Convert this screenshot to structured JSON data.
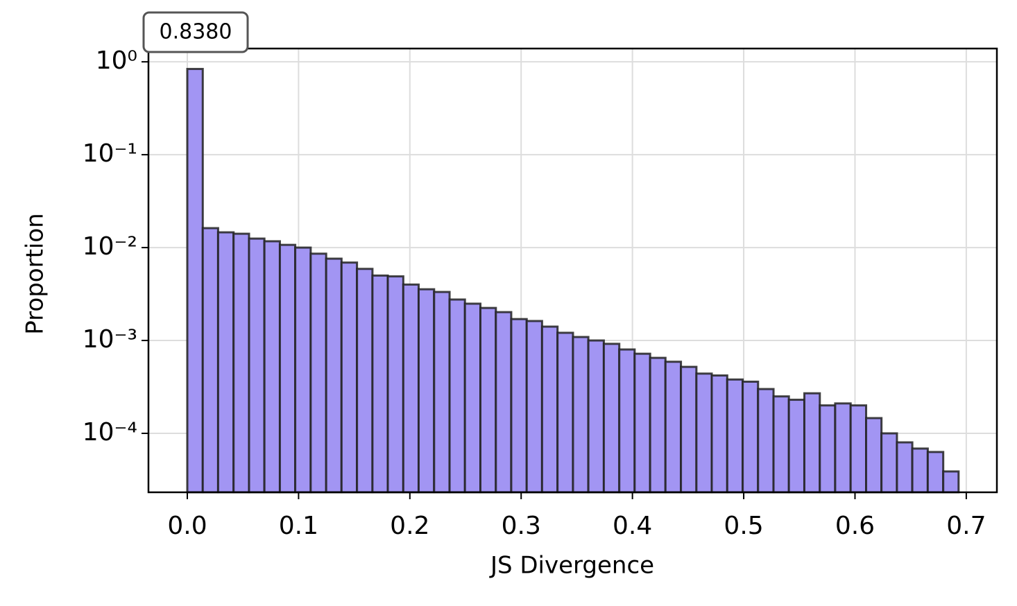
{
  "chart_data": {
    "type": "histogram",
    "annotation": "0.8380",
    "xlabel": "JS Divergence",
    "ylabel": "Proportion",
    "bins": [
      0,
      0.0139,
      0.0277,
      0.0416,
      0.0555,
      0.0693,
      0.0832,
      0.097,
      0.1109,
      0.1248,
      0.1386,
      0.1525,
      0.1664,
      0.1802,
      0.1941,
      0.2079,
      0.2218,
      0.2357,
      0.2495,
      0.2634,
      0.2773,
      0.2911,
      0.305,
      0.3188,
      0.3327,
      0.3466,
      0.3604,
      0.3743,
      0.3882,
      0.402,
      0.4159,
      0.4297,
      0.4436,
      0.4575,
      0.4713,
      0.4852,
      0.4991,
      0.5129,
      0.5268,
      0.5406,
      0.5545,
      0.5684,
      0.5822,
      0.5961,
      0.61,
      0.6238,
      0.6377,
      0.6515,
      0.6654,
      0.6793,
      0.6931
    ],
    "values": [
      0.838,
      0.0162,
      0.0146,
      0.0141,
      0.0125,
      0.0117,
      0.0107,
      0.01,
      0.0086,
      0.0076,
      0.0069,
      0.0059,
      0.005,
      0.0049,
      0.004,
      0.00356,
      0.00333,
      0.00276,
      0.00249,
      0.00224,
      0.00202,
      0.0017,
      0.00162,
      0.00141,
      0.00121,
      0.00109,
      0.001,
      0.00092,
      0.0008,
      0.00072,
      0.00065,
      0.00059,
      0.00052,
      0.00044,
      0.00042,
      0.00038,
      0.00036,
      0.0003,
      0.00025,
      0.00023,
      0.00027,
      0.0002,
      0.00021,
      0.0002,
      0.000146,
      0.0001,
      8e-05,
      6.86e-05,
      6.3e-05,
      3.89e-05
    ],
    "color": "#a295f3",
    "edgecolor": "#222222",
    "xlim": [
      -0.0349,
      0.7275
    ],
    "xticks": [
      {
        "value": 0,
        "label": "0.0"
      },
      0.1,
      0.2,
      0.3,
      0.4,
      0.5,
      0.6,
      0.7
    ],
    "ylim": [
      2.32e-05,
      1.39
    ],
    "yscale": "log",
    "yticks": [
      {
        "value": 1,
        "label": "10⁰"
      },
      {
        "value": 0.1,
        "label": "10⁻¹"
      },
      {
        "value": 0.01,
        "label": "10⁻²"
      },
      {
        "value": 0.001,
        "label": "10⁻³"
      },
      {
        "value": 0.0001,
        "label": "10⁻⁴"
      }
    ],
    "grid": true
  }
}
